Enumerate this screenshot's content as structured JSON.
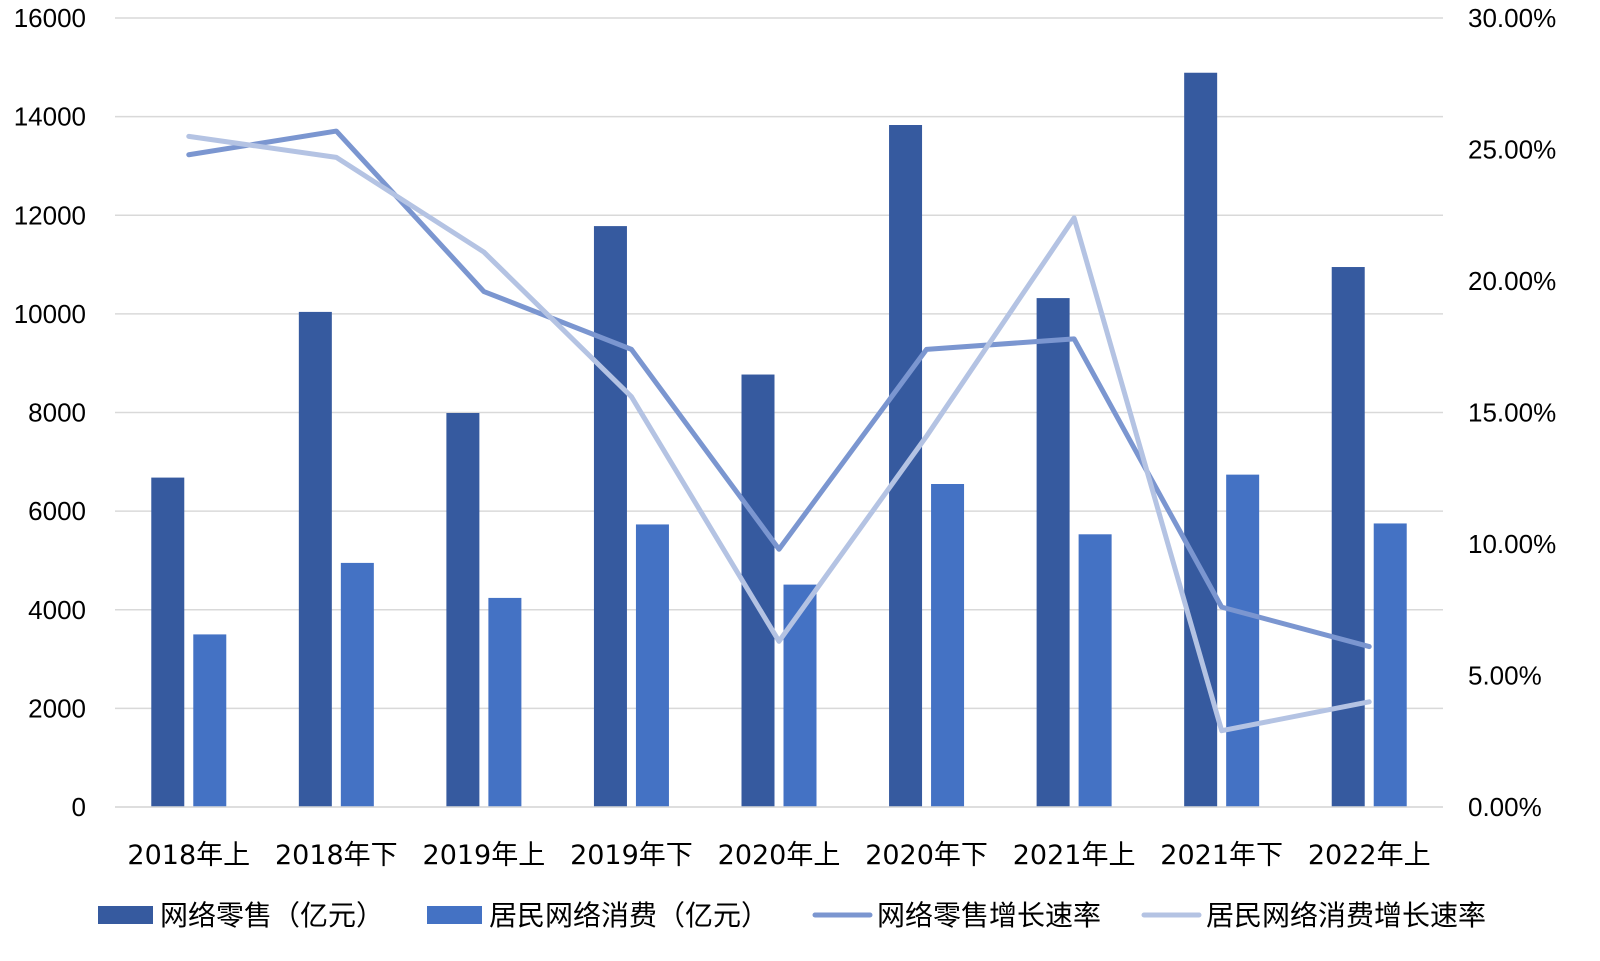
{
  "chart_data": {
    "type": "bar",
    "categories": [
      "2018年上",
      "2018年下",
      "2019年上",
      "2019年下",
      "2020年上",
      "2020年下",
      "2021年上",
      "2021年下",
      "2022年上"
    ],
    "y_left": {
      "ylim": [
        0,
        16000
      ],
      "ticks": [
        "0",
        "2000",
        "4000",
        "6000",
        "8000",
        "10000",
        "12000",
        "14000",
        "16000"
      ],
      "tick_values": [
        0,
        2000,
        4000,
        6000,
        8000,
        10000,
        12000,
        14000,
        16000
      ]
    },
    "y_right": {
      "ylim": [
        0,
        30
      ],
      "ticks": [
        "0.00%",
        "5.00%",
        "10.00%",
        "15.00%",
        "20.00%",
        "25.00%",
        "30.00%"
      ],
      "tick_values": [
        0,
        5,
        10,
        15,
        20,
        25,
        30
      ]
    },
    "grid": true,
    "legend_position": "bottom",
    "series": [
      {
        "name": "网络零售（亿元）",
        "type": "bar",
        "axis": "left",
        "color": "#365a9f",
        "values": [
          6680,
          10040,
          7990,
          11780,
          8770,
          13830,
          10320,
          14890,
          10950
        ]
      },
      {
        "name": "居民网络消费（亿元）",
        "type": "bar",
        "axis": "left",
        "color": "#4472c4",
        "values": [
          3500,
          4950,
          4240,
          5730,
          4510,
          6550,
          5530,
          6740,
          5750
        ]
      },
      {
        "name": "网络零售增长速率",
        "type": "line",
        "axis": "right",
        "color": "#7b96d0",
        "values": [
          24.8,
          25.7,
          19.6,
          17.4,
          9.8,
          17.4,
          17.8,
          7.6,
          6.1
        ]
      },
      {
        "name": "居民网络消费增长速率",
        "type": "line",
        "axis": "right",
        "color": "#b4c3e3",
        "values": [
          25.5,
          24.7,
          21.1,
          15.6,
          6.3,
          14.1,
          22.4,
          2.9,
          4.0
        ]
      }
    ]
  }
}
